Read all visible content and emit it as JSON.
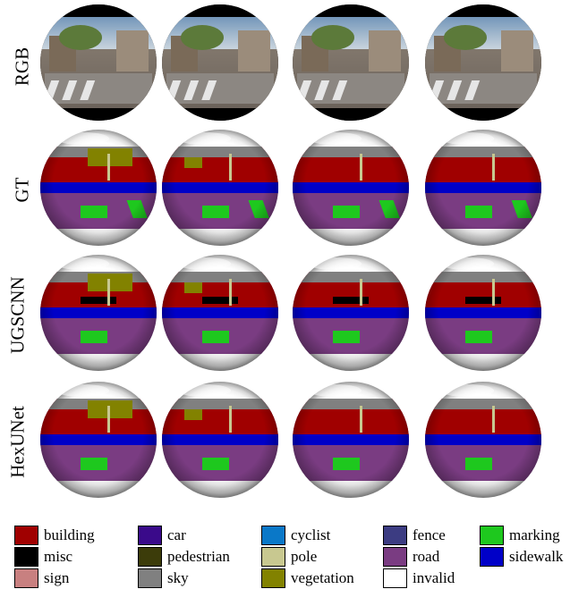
{
  "rows": [
    {
      "label": "RGB",
      "type": "rgb"
    },
    {
      "label": "GT",
      "type": "seg"
    },
    {
      "label": "UGSCNN",
      "type": "seg"
    },
    {
      "label": "HexUNet",
      "type": "seg"
    }
  ],
  "legend": [
    {
      "label": "building",
      "color": "#a00000"
    },
    {
      "label": "car",
      "color": "#3a0a8a"
    },
    {
      "label": "cyclist",
      "color": "#0a78c8"
    },
    {
      "label": "fence",
      "color": "#3c3c82"
    },
    {
      "label": "marking",
      "color": "#1ec81e"
    },
    {
      "label": "misc",
      "color": "#000000"
    },
    {
      "label": "pedestrian",
      "color": "#3c3c0a"
    },
    {
      "label": "pole",
      "color": "#c8c890"
    },
    {
      "label": "road",
      "color": "#7a3c82"
    },
    {
      "label": "sidewalk",
      "color": "#0000c8"
    },
    {
      "label": "sign",
      "color": "#c88080"
    },
    {
      "label": "sky",
      "color": "#808080"
    },
    {
      "label": "vegetation",
      "color": "#828200"
    },
    {
      "label": "invalid",
      "color": "#ffffff"
    }
  ]
}
